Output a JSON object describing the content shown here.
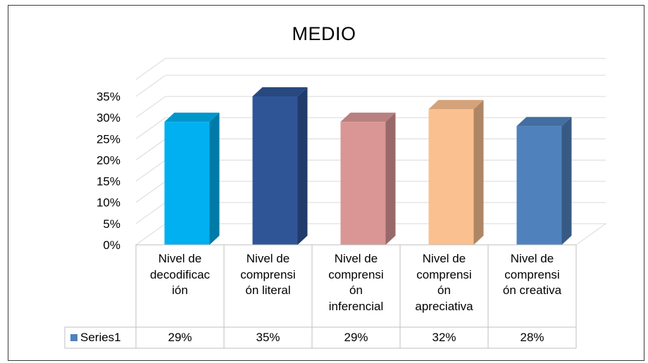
{
  "chart_data": {
    "type": "bar",
    "title": "MEDIO",
    "categories": [
      "Nivel de decodificac ión",
      "Nivel de comprensi ón literal",
      "Nivel de comprensi ón inferencial",
      "Nivel de comprensi ón apreciativa",
      "Nivel de comprensi ón creativa"
    ],
    "category_lines": [
      [
        "Nivel de",
        "decodificac",
        "ión"
      ],
      [
        "Nivel de",
        "comprensi",
        "ón literal"
      ],
      [
        "Nivel de",
        "comprensi",
        "ón",
        "inferencial"
      ],
      [
        "Nivel de",
        "comprensi",
        "ón",
        "apreciativa"
      ],
      [
        "Nivel de",
        "comprensi",
        "ón creativa"
      ]
    ],
    "series": [
      {
        "name": "Series1",
        "values": [
          0.29,
          0.35,
          0.29,
          0.32,
          0.28
        ],
        "labels": [
          "29%",
          "35%",
          "29%",
          "32%",
          "28%"
        ]
      }
    ],
    "bar_colors": [
      "#00b0f0",
      "#2f5597",
      "#d99694",
      "#fac090",
      "#4f81bd"
    ],
    "ylim": [
      0,
      0.35
    ],
    "yticks": [
      "0%",
      "5%",
      "10%",
      "15%",
      "20%",
      "25%",
      "30%",
      "35%"
    ],
    "grid": true,
    "three_d": true,
    "legend_placement": "data-table",
    "legend_marker_color": "#4f81bd",
    "xlabel": "",
    "ylabel": ""
  }
}
